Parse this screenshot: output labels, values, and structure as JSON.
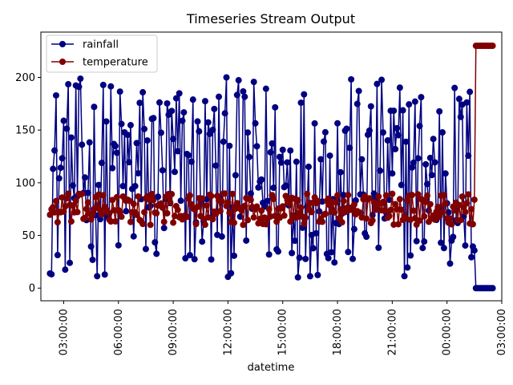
{
  "chart_data": {
    "type": "line",
    "title": "Timeseries Stream Output",
    "xlabel": "datetime",
    "ylabel": "",
    "x_start": "2024-01-01 02:15:00",
    "x_end": "2024-01-02 02:30:00",
    "xlim": [
      "2024-01-01 01:45:00",
      "2024-01-02 03:00:00"
    ],
    "ylim": [
      -12,
      243
    ],
    "x_ticks": [
      {
        "time": "2024-01-01 03:00:00",
        "label": "03:00:00"
      },
      {
        "time": "2024-01-01 06:00:00",
        "label": "06:00:00"
      },
      {
        "time": "2024-01-01 09:00:00",
        "label": "09:00:00"
      },
      {
        "time": "2024-01-01 12:00:00",
        "label": "12:00:00"
      },
      {
        "time": "2024-01-01 15:00:00",
        "label": "15:00:00"
      },
      {
        "time": "2024-01-01 18:00:00",
        "label": "18:00:00"
      },
      {
        "time": "2024-01-01 21:00:00",
        "label": "21:00:00"
      },
      {
        "time": "2024-01-02 00:00:00",
        "label": "00:00:00"
      },
      {
        "time": "2024-01-02 03:00:00",
        "label": "03:00:00"
      }
    ],
    "y_ticks": [
      0,
      50,
      100,
      150,
      200
    ],
    "grid": false,
    "legend": "upper-left",
    "series": [
      {
        "name": "rainfall",
        "color": "#000080",
        "marker": "circle",
        "segments": [
          {
            "from": "2024-01-01 02:15:00",
            "to": "2024-01-02 01:30:00",
            "kind": "noise",
            "min": 10,
            "max": 200,
            "step_minutes": 5
          },
          {
            "from": "2024-01-02 01:35:00",
            "to": "2024-01-02 02:30:00",
            "kind": "constant",
            "value": 0,
            "step_minutes": 5
          }
        ]
      },
      {
        "name": "temperature",
        "color": "#800000",
        "marker": "circle",
        "segments": [
          {
            "from": "2024-01-01 02:15:00",
            "to": "2024-01-02 01:30:00",
            "kind": "noise",
            "min": 60,
            "max": 90,
            "step_minutes": 5
          },
          {
            "from": "2024-01-02 01:35:00",
            "to": "2024-01-02 02:30:00",
            "kind": "constant",
            "value": 230,
            "step_minutes": 5
          }
        ]
      }
    ]
  }
}
